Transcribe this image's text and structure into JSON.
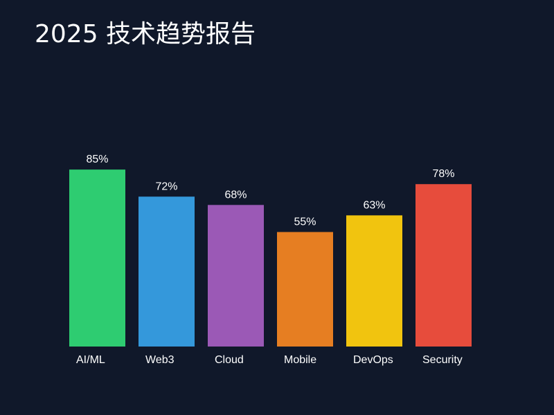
{
  "chart_data": {
    "type": "bar",
    "title": "2025 技术趋势报告",
    "categories": [
      "AI/ML",
      "Web3",
      "Cloud",
      "Mobile",
      "DevOps",
      "Security"
    ],
    "values": [
      85,
      72,
      68,
      55,
      63,
      78
    ],
    "value_labels": [
      "85%",
      "72%",
      "68%",
      "55%",
      "63%",
      "78%"
    ],
    "colors": [
      "#2ecc71",
      "#3498db",
      "#9b59b6",
      "#e67e22",
      "#f1c40f",
      "#e74c3c"
    ],
    "ylim": [
      0,
      100
    ],
    "grid": false,
    "xlabel": "",
    "ylabel": ""
  }
}
